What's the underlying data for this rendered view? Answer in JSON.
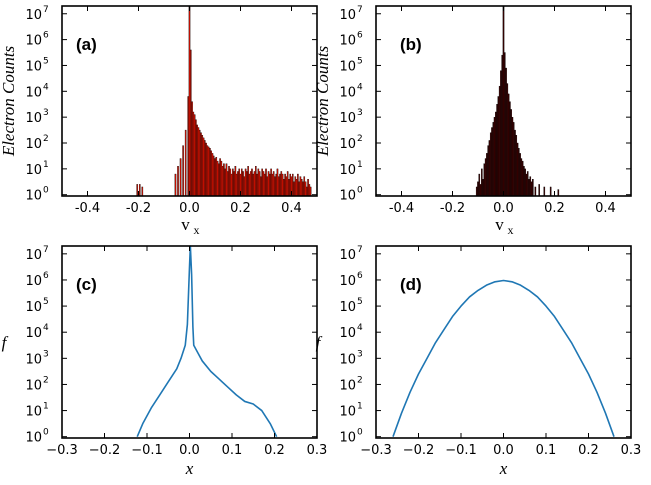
{
  "chart_data": [
    {
      "id": "a",
      "type": "bar",
      "panel_label": "(a)",
      "xlabel": "v",
      "xlabel_sub": "x",
      "ylabel": "Electron Counts",
      "xlim": [
        -0.5,
        0.5
      ],
      "ylim_log10": [
        -0.05,
        7.3
      ],
      "xticks": [
        "-0.4",
        "-0.2",
        "0.0",
        "0.2",
        "0.4"
      ],
      "xtick_values": [
        -0.4,
        -0.2,
        0.0,
        0.2,
        0.4
      ],
      "ytick_exponents": [
        0,
        1,
        2,
        3,
        4,
        5,
        6,
        7
      ],
      "ytick_base": "10",
      "bar_color": "#dd1100",
      "bins": [
        [
          -0.205,
          0.4
        ],
        [
          -0.195,
          0.4
        ],
        [
          -0.185,
          0.3
        ],
        [
          -0.055,
          0.8
        ],
        [
          -0.045,
          1.1
        ],
        [
          -0.035,
          1.4
        ],
        [
          -0.025,
          1.9
        ],
        [
          -0.015,
          2.5
        ],
        [
          -0.005,
          3.8
        ],
        [
          0.0,
          7.3
        ],
        [
          0.005,
          5.6
        ],
        [
          0.01,
          3.6
        ],
        [
          0.015,
          3.2
        ],
        [
          0.02,
          3.1
        ],
        [
          0.025,
          2.9
        ],
        [
          0.03,
          2.7
        ],
        [
          0.035,
          2.6
        ],
        [
          0.04,
          2.5
        ],
        [
          0.045,
          2.4
        ],
        [
          0.05,
          2.3
        ],
        [
          0.055,
          2.2
        ],
        [
          0.06,
          2.1
        ],
        [
          0.065,
          2.0
        ],
        [
          0.07,
          1.9
        ],
        [
          0.075,
          1.85
        ],
        [
          0.08,
          1.8
        ],
        [
          0.085,
          1.7
        ],
        [
          0.09,
          1.6
        ],
        [
          0.095,
          1.5
        ],
        [
          0.1,
          1.4
        ],
        [
          0.105,
          1.45
        ],
        [
          0.11,
          1.3
        ],
        [
          0.115,
          1.2
        ],
        [
          0.12,
          1.4
        ],
        [
          0.125,
          1.3
        ],
        [
          0.13,
          1.1
        ],
        [
          0.135,
          1.2
        ],
        [
          0.14,
          1.0
        ],
        [
          0.145,
          1.2
        ],
        [
          0.15,
          0.9
        ],
        [
          0.155,
          1.1
        ],
        [
          0.16,
          1.0
        ],
        [
          0.165,
          0.8
        ],
        [
          0.17,
          1.0
        ],
        [
          0.175,
          0.9
        ],
        [
          0.18,
          1.1
        ],
        [
          0.185,
          0.8
        ],
        [
          0.19,
          0.9
        ],
        [
          0.195,
          1.0
        ],
        [
          0.2,
          0.8
        ],
        [
          0.205,
          1.0
        ],
        [
          0.21,
          0.9
        ],
        [
          0.215,
          0.7
        ],
        [
          0.22,
          1.0
        ],
        [
          0.225,
          0.9
        ],
        [
          0.23,
          1.1
        ],
        [
          0.235,
          0.8
        ],
        [
          0.24,
          0.9
        ],
        [
          0.245,
          1.0
        ],
        [
          0.25,
          0.8
        ],
        [
          0.255,
          0.9
        ],
        [
          0.26,
          1.1
        ],
        [
          0.265,
          0.8
        ],
        [
          0.27,
          1.0
        ],
        [
          0.275,
          0.9
        ],
        [
          0.28,
          0.7
        ],
        [
          0.285,
          1.0
        ],
        [
          0.29,
          0.9
        ],
        [
          0.295,
          0.8
        ],
        [
          0.3,
          1.0
        ],
        [
          0.305,
          0.7
        ],
        [
          0.31,
          0.9
        ],
        [
          0.315,
          0.8
        ],
        [
          0.32,
          1.0
        ],
        [
          0.325,
          0.8
        ],
        [
          0.33,
          0.9
        ],
        [
          0.335,
          0.7
        ],
        [
          0.34,
          0.8
        ],
        [
          0.345,
          1.0
        ],
        [
          0.35,
          0.7
        ],
        [
          0.355,
          0.8
        ],
        [
          0.36,
          0.9
        ],
        [
          0.365,
          0.8
        ],
        [
          0.37,
          0.6
        ],
        [
          0.375,
          0.8
        ],
        [
          0.38,
          0.7
        ],
        [
          0.385,
          0.9
        ],
        [
          0.39,
          0.6
        ],
        [
          0.395,
          0.8
        ],
        [
          0.4,
          0.7
        ],
        [
          0.405,
          0.8
        ],
        [
          0.41,
          0.5
        ],
        [
          0.415,
          0.7
        ],
        [
          0.42,
          0.6
        ],
        [
          0.425,
          0.8
        ],
        [
          0.43,
          0.5
        ],
        [
          0.435,
          0.7
        ],
        [
          0.44,
          0.6
        ],
        [
          0.445,
          0.5
        ],
        [
          0.45,
          0.7
        ],
        [
          0.455,
          0.5
        ],
        [
          0.46,
          0.3
        ],
        [
          0.465,
          0.6
        ],
        [
          0.47,
          0.4
        ],
        [
          0.475,
          0.3
        ]
      ],
      "bin_width": 0.0048
    },
    {
      "id": "b",
      "type": "bar",
      "panel_label": "(b)",
      "xlabel": "v",
      "xlabel_sub": "x",
      "ylabel": "Electron Counts",
      "xlim": [
        -0.5,
        0.5
      ],
      "ylim_log10": [
        -0.05,
        7.3
      ],
      "xticks": [
        "-0.4",
        "-0.2",
        "0.0",
        "0.2",
        "0.4"
      ],
      "xtick_values": [
        -0.4,
        -0.2,
        0.0,
        0.2,
        0.4
      ],
      "ytick_exponents": [
        0,
        1,
        2,
        3,
        4,
        5,
        6,
        7
      ],
      "ytick_base": "10",
      "bar_color": "#3a0000",
      "bins": [
        [
          -0.105,
          0.3
        ],
        [
          -0.1,
          0.5
        ],
        [
          -0.095,
          0.8
        ],
        [
          -0.09,
          0.4
        ],
        [
          -0.085,
          1.0
        ],
        [
          -0.08,
          0.6
        ],
        [
          -0.075,
          1.2
        ],
        [
          -0.07,
          1.4
        ],
        [
          -0.065,
          1.6
        ],
        [
          -0.06,
          1.9
        ],
        [
          -0.055,
          2.1
        ],
        [
          -0.05,
          2.4
        ],
        [
          -0.045,
          2.6
        ],
        [
          -0.04,
          2.8
        ],
        [
          -0.035,
          3.0
        ],
        [
          -0.03,
          3.2
        ],
        [
          -0.025,
          3.5
        ],
        [
          -0.02,
          3.8
        ],
        [
          -0.015,
          4.2
        ],
        [
          -0.01,
          4.8
        ],
        [
          -0.005,
          5.4
        ],
        [
          0.0,
          7.3
        ],
        [
          0.005,
          5.5
        ],
        [
          0.01,
          4.9
        ],
        [
          0.015,
          4.3
        ],
        [
          0.02,
          3.9
        ],
        [
          0.025,
          3.6
        ],
        [
          0.03,
          3.3
        ],
        [
          0.035,
          3.0
        ],
        [
          0.04,
          2.8
        ],
        [
          0.045,
          2.5
        ],
        [
          0.05,
          2.3
        ],
        [
          0.055,
          2.0
        ],
        [
          0.06,
          1.8
        ],
        [
          0.065,
          1.6
        ],
        [
          0.07,
          1.4
        ],
        [
          0.075,
          1.3
        ],
        [
          0.08,
          1.1
        ],
        [
          0.085,
          1.0
        ],
        [
          0.09,
          0.8
        ],
        [
          0.095,
          0.9
        ],
        [
          0.1,
          0.6
        ],
        [
          0.105,
          0.7
        ],
        [
          0.11,
          0.5
        ],
        [
          0.115,
          0.6
        ],
        [
          0.125,
          0.3
        ],
        [
          0.14,
          0.4
        ],
        [
          0.16,
          0.3
        ],
        [
          0.185,
          0.3
        ],
        [
          0.215,
          0.2
        ]
      ],
      "bin_width": 0.0048
    },
    {
      "id": "c",
      "type": "line",
      "panel_label": "(c)",
      "xlabel": "x",
      "ylabel": "f",
      "xlim": [
        -0.3,
        0.3
      ],
      "ylim_log10": [
        -0.05,
        7.3
      ],
      "xticks": [
        "−0.3",
        "−0.2",
        "−0.1",
        "0.0",
        "0.1",
        "0.2",
        "0.3"
      ],
      "xtick_values": [
        -0.3,
        -0.2,
        -0.1,
        0.0,
        0.1,
        0.2,
        0.3
      ],
      "ytick_exponents": [
        0,
        1,
        2,
        3,
        4,
        5,
        6,
        7
      ],
      "ytick_base": "10",
      "line_color": "#1f77b4",
      "x": [
        -0.123,
        -0.11,
        -0.09,
        -0.07,
        -0.05,
        -0.03,
        -0.02,
        -0.01,
        -0.005,
        0.0,
        0.002,
        0.005,
        0.008,
        0.01,
        0.02,
        0.03,
        0.05,
        0.07,
        0.09,
        0.11,
        0.13,
        0.15,
        0.17,
        0.19,
        0.205
      ],
      "y_log10": [
        0.0,
        0.5,
        1.1,
        1.6,
        2.1,
        2.6,
        3.0,
        3.5,
        4.3,
        6.5,
        7.3,
        6.2,
        4.2,
        3.5,
        3.2,
        2.9,
        2.5,
        2.2,
        1.9,
        1.6,
        1.35,
        1.25,
        1.0,
        0.5,
        0.0
      ]
    },
    {
      "id": "d",
      "type": "line",
      "panel_label": "(d)",
      "xlabel": "x",
      "ylabel": "f",
      "xlim": [
        -0.3,
        0.3
      ],
      "ylim_log10": [
        -0.05,
        7.3
      ],
      "xticks": [
        "−0.3",
        "−0.2",
        "−0.1",
        "0.0",
        "0.1",
        "0.2",
        "0.3"
      ],
      "xtick_values": [
        -0.3,
        -0.2,
        -0.1,
        0.0,
        0.1,
        0.2,
        0.3
      ],
      "ytick_exponents": [
        0,
        1,
        2,
        3,
        4,
        5,
        6,
        7
      ],
      "ytick_base": "10",
      "line_color": "#1f77b4",
      "x": [
        -0.26,
        -0.24,
        -0.22,
        -0.2,
        -0.18,
        -0.16,
        -0.14,
        -0.12,
        -0.1,
        -0.08,
        -0.06,
        -0.04,
        -0.02,
        0.0,
        0.02,
        0.04,
        0.06,
        0.08,
        0.1,
        0.12,
        0.14,
        0.16,
        0.18,
        0.2,
        0.22,
        0.24,
        0.26
      ],
      "y_log10": [
        0.0,
        0.9,
        1.7,
        2.4,
        3.0,
        3.6,
        4.1,
        4.6,
        5.0,
        5.35,
        5.6,
        5.8,
        5.93,
        5.98,
        5.93,
        5.8,
        5.6,
        5.35,
        5.0,
        4.6,
        4.1,
        3.6,
        3.0,
        2.4,
        1.7,
        0.9,
        0.0
      ]
    }
  ]
}
